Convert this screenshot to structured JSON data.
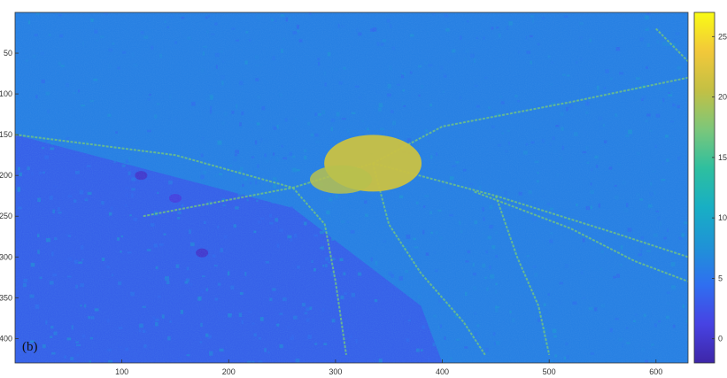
{
  "chart_data": {
    "type": "heatmap",
    "title": "",
    "xlabel": "",
    "ylabel": "",
    "panel_label": "(b)",
    "x_ticks": [
      {
        "value": 100,
        "label": "100"
      },
      {
        "value": 200,
        "label": "200"
      },
      {
        "value": 300,
        "label": "300"
      },
      {
        "value": 400,
        "label": "400"
      },
      {
        "value": 500,
        "label": "500"
      },
      {
        "value": 600,
        "label": "600"
      }
    ],
    "y_ticks": [
      {
        "value": 50,
        "label": "50"
      },
      {
        "value": 100,
        "label": "100"
      },
      {
        "value": 150,
        "label": "150"
      },
      {
        "value": 200,
        "label": "200"
      },
      {
        "value": 250,
        "label": "250"
      },
      {
        "value": 300,
        "label": "300"
      },
      {
        "value": 350,
        "label": "350"
      },
      {
        "value": 400,
        "label": "400"
      }
    ],
    "xlim": [
      0,
      630
    ],
    "ylim": [
      0,
      430
    ],
    "y_reversed": true,
    "colorbar": {
      "colormap": "parula",
      "range": [
        -2,
        27
      ],
      "ticks": [
        {
          "value": 0,
          "label": "0"
        },
        {
          "value": 5,
          "label": "5"
        },
        {
          "value": 10,
          "label": "10"
        },
        {
          "value": 15,
          "label": "15"
        },
        {
          "value": 20,
          "label": "20"
        },
        {
          "value": 25,
          "label": "25"
        }
      ],
      "colors": [
        "#3e26a8",
        "#4743e3",
        "#2f6ff0",
        "#1f93d6",
        "#18afc4",
        "#2ebf9f",
        "#7cc77a",
        "#c3c044",
        "#f2c83a",
        "#f9fb15"
      ]
    },
    "field": {
      "base_value": 6,
      "upper_region_value": 6,
      "lower_left_region_value": 3,
      "city_center": {
        "x": 335,
        "y": 185,
        "value": 21
      },
      "water_bodies": [
        {
          "x": 118,
          "y": 200,
          "value": 0
        },
        {
          "x": 150,
          "y": 228,
          "value": 1
        },
        {
          "x": 175,
          "y": 295,
          "value": 0
        }
      ],
      "corridors_value": 17
    }
  }
}
